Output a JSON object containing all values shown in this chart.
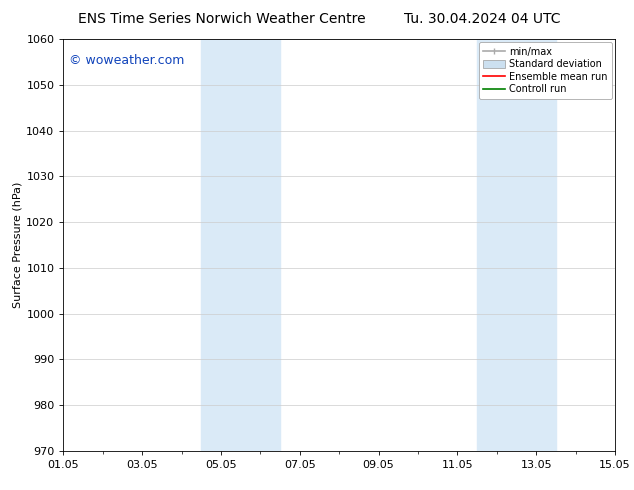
{
  "title_left": "ENS Time Series Norwich Weather Centre",
  "title_right": "Tu. 30.04.2024 04 UTC",
  "ylabel": "Surface Pressure (hPa)",
  "ylim": [
    970,
    1060
  ],
  "yticks": [
    970,
    980,
    990,
    1000,
    1010,
    1020,
    1030,
    1040,
    1050,
    1060
  ],
  "xtick_labels": [
    "01.05",
    "03.05",
    "05.05",
    "07.05",
    "09.05",
    "11.05",
    "13.05",
    "15.05"
  ],
  "xtick_values": [
    0,
    2,
    4,
    6,
    8,
    10,
    12,
    14
  ],
  "xlim": [
    0,
    14
  ],
  "shaded_regions": [
    {
      "x_start": 3.5,
      "x_end": 5.5,
      "color": "#daeaf7"
    },
    {
      "x_start": 10.5,
      "x_end": 12.5,
      "color": "#daeaf7"
    }
  ],
  "watermark_text": "© woweather.com",
  "watermark_color": "#1144bb",
  "legend_items": [
    {
      "label": "min/max",
      "color": "#aaaaaa",
      "lw": 1.2,
      "style": "solid",
      "type": "line"
    },
    {
      "label": "Standard deviation",
      "color": "#cce0f0",
      "lw": 6,
      "style": "solid",
      "type": "patch"
    },
    {
      "label": "Ensemble mean run",
      "color": "red",
      "lw": 1.2,
      "style": "solid",
      "type": "line"
    },
    {
      "label": "Controll run",
      "color": "green",
      "lw": 1.2,
      "style": "solid",
      "type": "line"
    }
  ],
  "background_color": "#ffffff",
  "grid_color": "#cccccc",
  "title_fontsize": 10,
  "axis_label_fontsize": 8,
  "tick_fontsize": 8,
  "legend_fontsize": 7,
  "watermark_fontsize": 9
}
